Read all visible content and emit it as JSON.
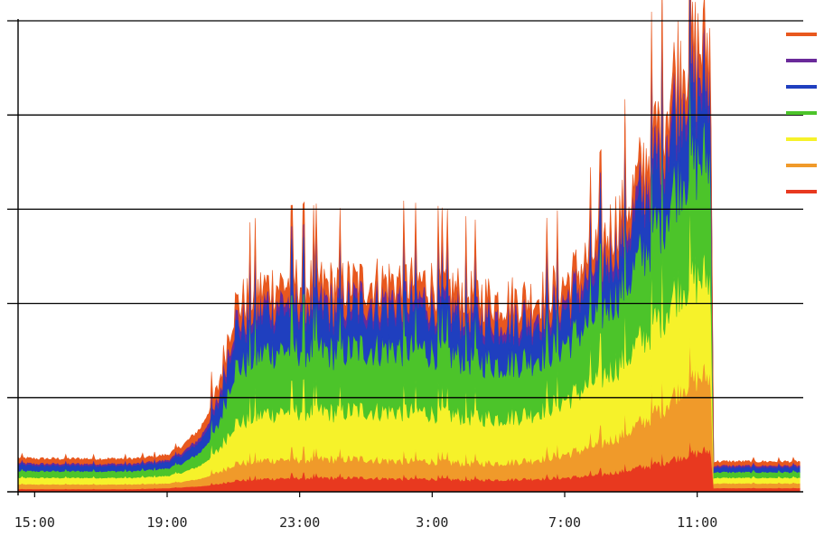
{
  "chart_data": {
    "type": "area",
    "stacked": true,
    "title": "",
    "xlabel": "",
    "ylabel": "",
    "grid": true,
    "legend_placement": "right",
    "x_ticks": [
      "15:00",
      "19:00",
      "23:00",
      "3:00",
      "7:00",
      "11:00"
    ],
    "x_hours": [
      14.5,
      15,
      16,
      17,
      18,
      19,
      19.5,
      20,
      20.5,
      21,
      22,
      23,
      24,
      25,
      26,
      27,
      28,
      29,
      30,
      31,
      32,
      33,
      34,
      34.5,
      35,
      35.4,
      35.5,
      36,
      37,
      38.1
    ],
    "ylim": [
      0,
      5
    ],
    "series": [
      {
        "color": "#e8391f",
        "values": [
          0.03,
          0.03,
          0.03,
          0.03,
          0.03,
          0.04,
          0.05,
          0.06,
          0.08,
          0.12,
          0.14,
          0.15,
          0.15,
          0.15,
          0.14,
          0.14,
          0.13,
          0.13,
          0.14,
          0.15,
          0.18,
          0.24,
          0.32,
          0.38,
          0.42,
          0.45,
          0.04,
          0.04,
          0.04,
          0.04
        ]
      },
      {
        "color": "#f09a2a",
        "values": [
          0.05,
          0.05,
          0.05,
          0.05,
          0.05,
          0.05,
          0.06,
          0.08,
          0.12,
          0.18,
          0.2,
          0.2,
          0.2,
          0.2,
          0.19,
          0.19,
          0.18,
          0.18,
          0.2,
          0.25,
          0.32,
          0.42,
          0.6,
          0.75,
          0.8,
          0.8,
          0.05,
          0.05,
          0.05,
          0.05
        ]
      },
      {
        "color": "#f6f22a",
        "values": [
          0.07,
          0.07,
          0.07,
          0.07,
          0.07,
          0.08,
          0.1,
          0.14,
          0.22,
          0.42,
          0.5,
          0.52,
          0.5,
          0.52,
          0.53,
          0.52,
          0.5,
          0.48,
          0.5,
          0.58,
          0.7,
          0.82,
          1.0,
          1.1,
          1.05,
          1.05,
          0.06,
          0.06,
          0.06,
          0.06
        ]
      },
      {
        "color": "#4cc42a",
        "values": [
          0.07,
          0.07,
          0.07,
          0.07,
          0.07,
          0.08,
          0.1,
          0.14,
          0.24,
          0.58,
          0.66,
          0.66,
          0.64,
          0.66,
          0.67,
          0.66,
          0.62,
          0.58,
          0.58,
          0.6,
          0.68,
          0.82,
          1.05,
          1.2,
          1.25,
          1.3,
          0.06,
          0.06,
          0.06,
          0.06
        ]
      },
      {
        "color": "#1f3fbf",
        "values": [
          0.07,
          0.06,
          0.06,
          0.06,
          0.06,
          0.07,
          0.09,
          0.12,
          0.2,
          0.4,
          0.42,
          0.44,
          0.43,
          0.43,
          0.44,
          0.44,
          0.42,
          0.4,
          0.38,
          0.37,
          0.42,
          0.5,
          0.68,
          0.78,
          0.74,
          0.7,
          0.05,
          0.05,
          0.05,
          0.05
        ]
      },
      {
        "color": "#6a2a9a",
        "values": [
          0.02,
          0.02,
          0.02,
          0.02,
          0.02,
          0.02,
          0.03,
          0.04,
          0.06,
          0.1,
          0.1,
          0.1,
          0.1,
          0.1,
          0.1,
          0.1,
          0.1,
          0.1,
          0.1,
          0.1,
          0.12,
          0.14,
          0.18,
          0.2,
          0.2,
          0.2,
          0.02,
          0.02,
          0.02,
          0.02
        ]
      },
      {
        "color": "#e8581e",
        "values": [
          0.05,
          0.05,
          0.05,
          0.05,
          0.05,
          0.05,
          0.07,
          0.09,
          0.12,
          0.15,
          0.16,
          0.16,
          0.16,
          0.16,
          0.16,
          0.16,
          0.16,
          0.16,
          0.15,
          0.15,
          0.16,
          0.18,
          0.22,
          0.25,
          0.25,
          0.25,
          0.04,
          0.04,
          0.04,
          0.04
        ]
      }
    ]
  },
  "colors": {
    "background": "#ffffff",
    "grid": "#000000"
  }
}
